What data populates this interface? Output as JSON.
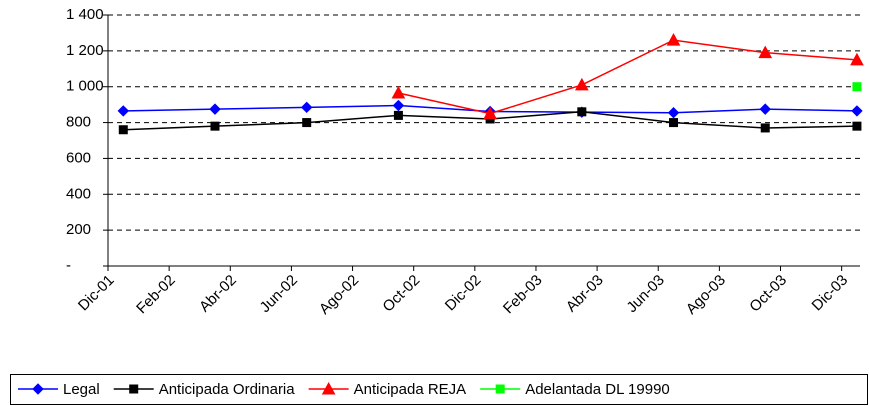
{
  "chart_data": {
    "type": "line",
    "x": [
      0.5,
      3.5,
      6.5,
      9.5,
      12.5,
      15.5,
      18.5,
      21.5,
      24.5
    ],
    "xlim": [
      0,
      24.6
    ],
    "xticks": [
      {
        "value": 0,
        "label": "Dic-01"
      },
      {
        "value": 2,
        "label": "Feb-02"
      },
      {
        "value": 4,
        "label": "Abr-02"
      },
      {
        "value": 6,
        "label": "Jun-02"
      },
      {
        "value": 8,
        "label": "Ago-02"
      },
      {
        "value": 10,
        "label": "Oct-02"
      },
      {
        "value": 12,
        "label": "Dic-02"
      },
      {
        "value": 14,
        "label": "Feb-03"
      },
      {
        "value": 16,
        "label": "Abr-03"
      },
      {
        "value": 18,
        "label": "Jun-03"
      },
      {
        "value": 20,
        "label": "Ago-03"
      },
      {
        "value": 22,
        "label": "Oct-03"
      },
      {
        "value": 24,
        "label": "Dic-03"
      }
    ],
    "ylim": [
      0,
      1400
    ],
    "yticks": [
      {
        "value": 0,
        "label": "-"
      },
      200,
      400,
      600,
      800,
      {
        "value": 1000,
        "label": "1 000"
      },
      {
        "value": 1200,
        "label": "1 200"
      },
      {
        "value": 1400,
        "label": "1 400"
      }
    ],
    "grid": true,
    "legend": "bottom",
    "series": [
      {
        "name": "Legal",
        "color": "#0000ff",
        "marker": "diamond",
        "values": [
          865,
          875,
          885,
          895,
          862,
          858,
          855,
          875,
          865
        ]
      },
      {
        "name": "Anticipada Ordinaria",
        "color": "#000000",
        "marker": "square",
        "values": [
          760,
          780,
          800,
          840,
          820,
          860,
          800,
          770,
          780
        ]
      },
      {
        "name": "Anticipada REJA",
        "color": "#ff0000",
        "marker": "triangle",
        "values": [
          null,
          null,
          null,
          965,
          850,
          1010,
          1260,
          1190,
          1150
        ]
      },
      {
        "name": "Adelantada DL 19990",
        "color": "#00ff00",
        "marker": "square",
        "values": [
          null,
          null,
          null,
          null,
          null,
          null,
          null,
          null,
          1000
        ]
      }
    ]
  }
}
